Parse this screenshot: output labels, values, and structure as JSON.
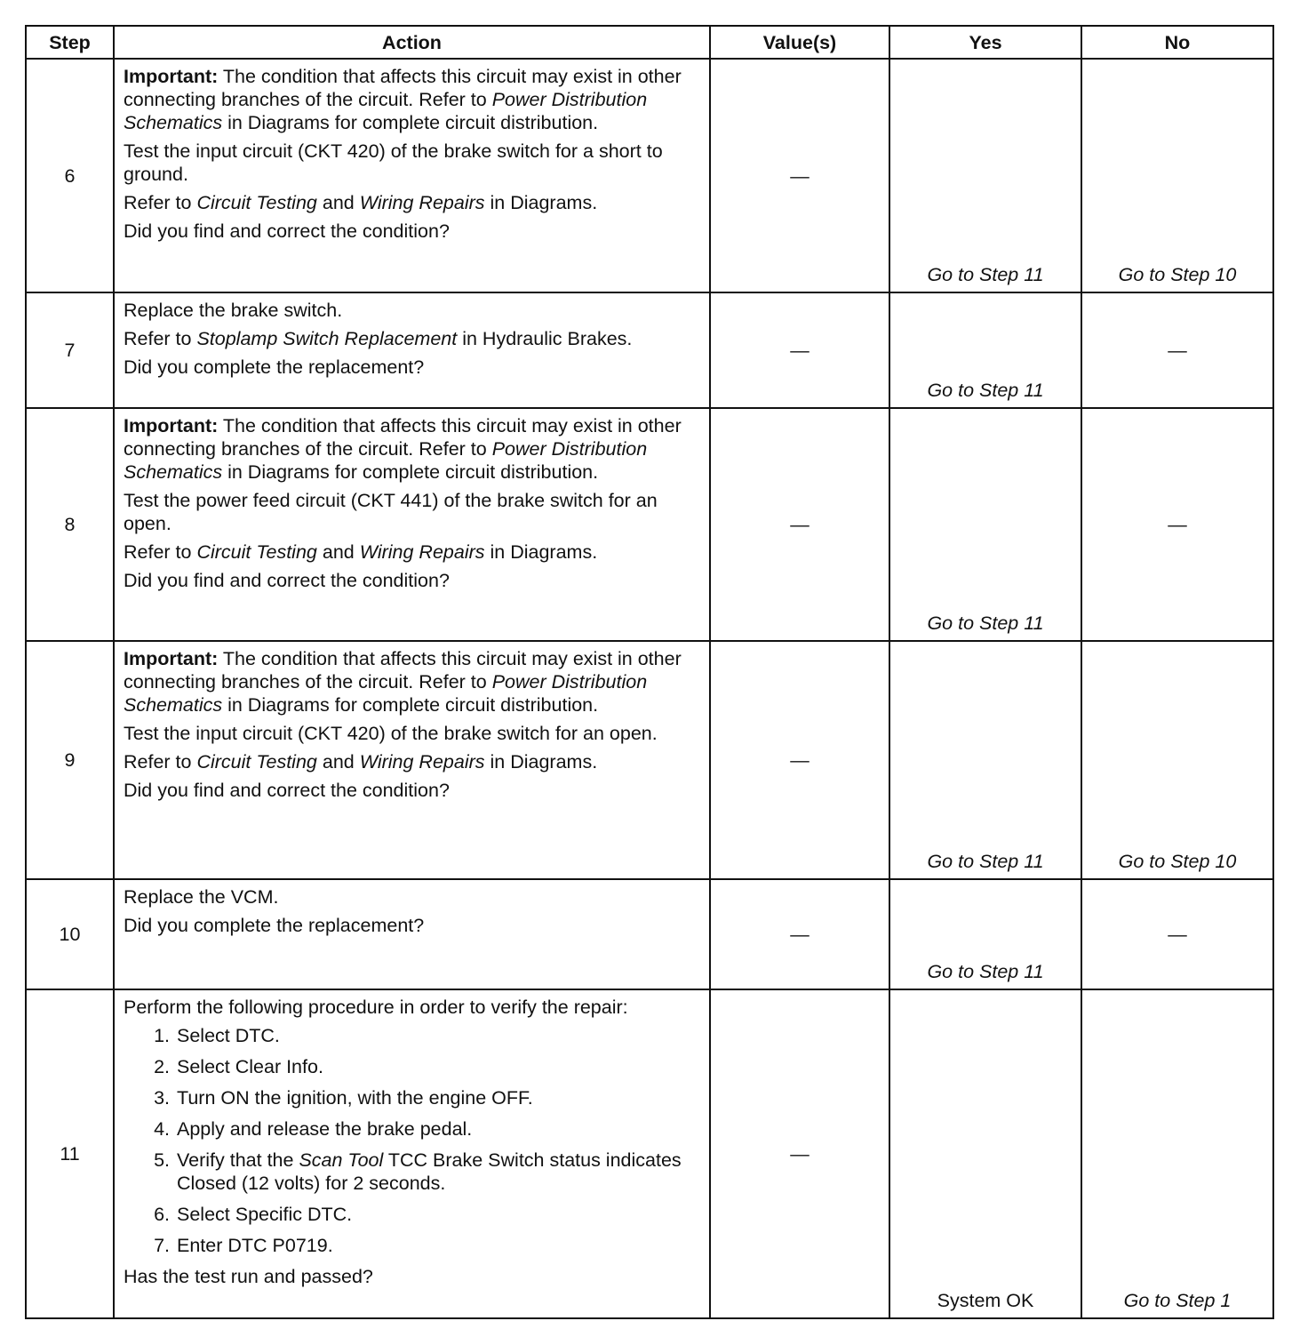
{
  "headers": [
    "Step",
    "Action",
    "Value(s)",
    "Yes",
    "No"
  ],
  "rows": [
    {
      "step": "6",
      "action": [
        [
          {
            "t": "Important:",
            "s": "b"
          },
          {
            "t": " The condition that affects this circuit may exist in other connecting branches of the circuit. Refer to "
          },
          {
            "t": "Power Distribution Schematics",
            "s": "i"
          },
          {
            "t": " in Diagrams for complete circuit distribution."
          }
        ],
        [
          {
            "t": "Test the input circuit (CKT 420) of the brake switch for a short to ground."
          }
        ],
        [
          {
            "t": "Refer to "
          },
          {
            "t": "Circuit Testing",
            "s": "i"
          },
          {
            "t": " and "
          },
          {
            "t": "Wiring Repairs",
            "s": "i"
          },
          {
            "t": " in Diagrams."
          }
        ],
        [
          {
            "t": "Did you find and correct the condition?"
          }
        ]
      ],
      "value": "—",
      "yes": {
        "t": "Go to Step 11",
        "s": "i"
      },
      "no": {
        "t": "Go to Step 10",
        "s": "i"
      },
      "h": 263
    },
    {
      "step": "7",
      "action": [
        [
          {
            "t": "Replace the brake switch."
          }
        ],
        [
          {
            "t": "Refer to "
          },
          {
            "t": "Stoplamp Switch Replacement",
            "s": "i"
          },
          {
            "t": " in Hydraulic Brakes."
          }
        ],
        [
          {
            "t": "Did you complete the replacement?"
          }
        ]
      ],
      "value": "—",
      "yes": {
        "t": "Go to Step 11",
        "s": "i"
      },
      "no": {
        "t": "—"
      },
      "h": 130
    },
    {
      "step": "8",
      "action": [
        [
          {
            "t": "Important:",
            "s": "b"
          },
          {
            "t": " The condition that affects this circuit may exist in other connecting branches of the circuit. Refer to "
          },
          {
            "t": "Power Distribution Schematics",
            "s": "i"
          },
          {
            "t": " in Diagrams for complete circuit distribution."
          }
        ],
        [
          {
            "t": "Test the power feed circuit (CKT 441) of the brake switch for an open."
          }
        ],
        [
          {
            "t": "Refer to "
          },
          {
            "t": "Circuit Testing",
            "s": "i"
          },
          {
            "t": " and "
          },
          {
            "t": "Wiring Repairs",
            "s": "i"
          },
          {
            "t": " in Diagrams."
          }
        ],
        [
          {
            "t": "Did you find and correct the condition?"
          }
        ]
      ],
      "value": "—",
      "yes": {
        "t": "Go to Step 11",
        "s": "i"
      },
      "no": {
        "t": "—"
      },
      "h": 262
    },
    {
      "step": "9",
      "action": [
        [
          {
            "t": "Important:",
            "s": "b"
          },
          {
            "t": " The condition that affects this circuit may exist in other connecting branches of the circuit. Refer to "
          },
          {
            "t": "Power Distribution Schematics",
            "s": "i"
          },
          {
            "t": " in Diagrams for complete circuit distribution."
          }
        ],
        [
          {
            "t": "Test the input circuit (CKT 420) of the brake switch for an open."
          }
        ],
        [
          {
            "t": "Refer to "
          },
          {
            "t": "Circuit Testing",
            "s": "i"
          },
          {
            "t": " and "
          },
          {
            "t": "Wiring Repairs",
            "s": "i"
          },
          {
            "t": " in Diagrams."
          }
        ],
        [
          {
            "t": "Did you find and correct the condition?"
          }
        ]
      ],
      "value": "—",
      "yes": {
        "t": "Go to Step 11",
        "s": "i"
      },
      "no": {
        "t": "Go to Step 10",
        "s": "i"
      },
      "h": 268
    },
    {
      "step": "10",
      "action": [
        [
          {
            "t": "Replace the VCM."
          }
        ],
        [
          {
            "t": "Did you complete the replacement?"
          }
        ]
      ],
      "value": "—",
      "yes": {
        "t": "Go to Step 11",
        "s": "i"
      },
      "no": {
        "t": "—"
      },
      "h": 124
    },
    {
      "step": "11",
      "action": [
        [
          {
            "t": "Perform the following procedure in order to verify the repair:"
          }
        ]
      ],
      "list": [
        [
          {
            "t": "Select DTC."
          }
        ],
        [
          {
            "t": "Select Clear Info."
          }
        ],
        [
          {
            "t": "Turn ON the ignition, with the engine OFF."
          }
        ],
        [
          {
            "t": "Apply and release the brake pedal."
          }
        ],
        [
          {
            "t": "Verify that the "
          },
          {
            "t": "Scan Tool",
            "s": "i"
          },
          {
            "t": " TCC Brake Switch status indicates Closed (12 volts) for 2 seconds."
          }
        ],
        [
          {
            "t": "Select Specific DTC."
          }
        ],
        [
          {
            "t": "Enter DTC P0719."
          }
        ]
      ],
      "after": [
        [
          {
            "t": "Has the test run and passed?"
          }
        ]
      ],
      "value": "—",
      "yes": {
        "t": "System OK"
      },
      "no": {
        "t": "Go to Step 1",
        "s": "i"
      },
      "h": 370
    }
  ]
}
